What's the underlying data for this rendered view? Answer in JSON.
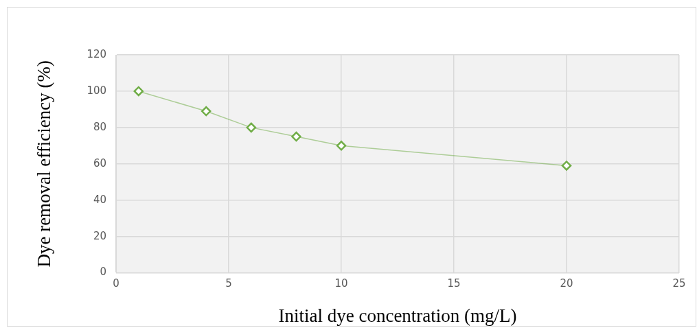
{
  "chart_data": {
    "type": "line",
    "xlabel": "Initial dye concentration (mg/L)",
    "ylabel": "Dye removal efficiency (%)",
    "x": [
      1,
      4,
      6,
      8,
      10,
      20
    ],
    "series": [
      {
        "color": "#70ad47",
        "values": [
          100,
          89,
          80,
          75,
          70,
          59
        ]
      }
    ],
    "xlim": [
      0,
      25
    ],
    "xticks": [
      0,
      5,
      10,
      15,
      20,
      25
    ],
    "ylim": [
      0,
      120
    ],
    "yticks": [
      0,
      20,
      40,
      60,
      80,
      100,
      120
    ],
    "grid": true,
    "marker": "diamond",
    "line_style": "solid",
    "legend": false
  }
}
